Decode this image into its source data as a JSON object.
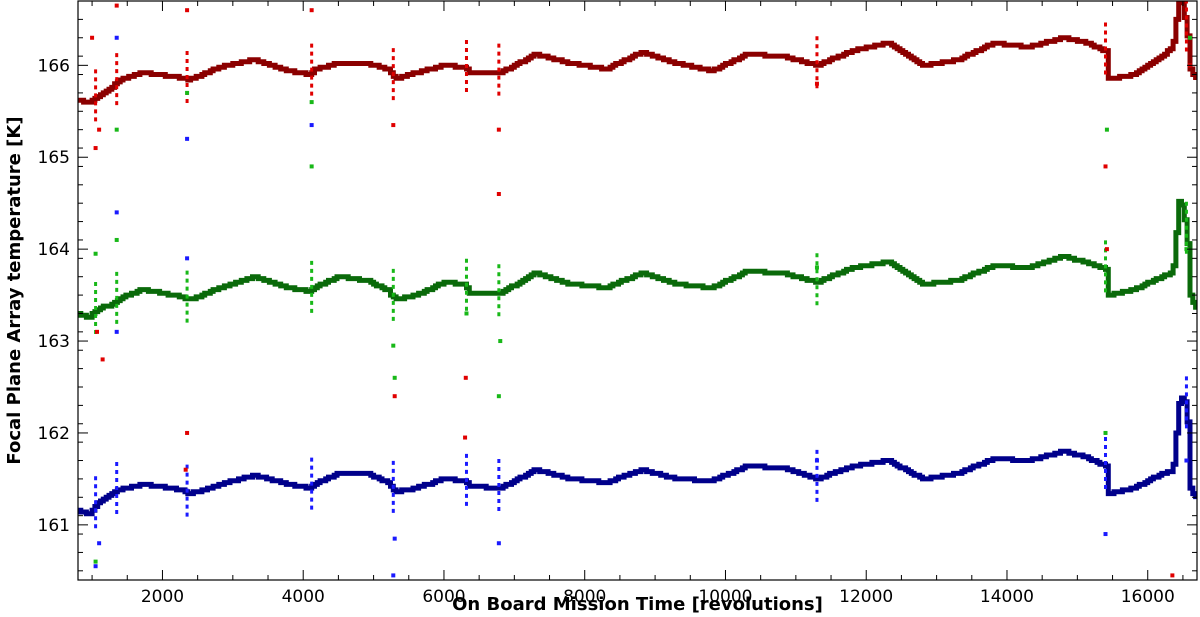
{
  "chart_data": {
    "type": "scatter",
    "title": "",
    "xlabel": "On Board Mission Time [revolutions]",
    "ylabel": "Focal Plane Array temperature [K]",
    "xlim": [
      800,
      16700
    ],
    "ylim": [
      160.4,
      166.7
    ],
    "xticks": [
      2000,
      4000,
      6000,
      8000,
      10000,
      12000,
      14000,
      16000
    ],
    "yticks": [
      161,
      162,
      163,
      164,
      165,
      166
    ],
    "grid": false,
    "series": [
      {
        "name": "red",
        "color": "#8b0000",
        "spike_color": "#e00000",
        "knots": [
          [
            800,
            165.62
          ],
          [
            950,
            165.6
          ],
          [
            1100,
            165.66
          ],
          [
            1300,
            165.78
          ],
          [
            1380,
            165.84
          ],
          [
            1700,
            165.92
          ],
          [
            2300,
            165.86
          ],
          [
            2350,
            165.84
          ],
          [
            2500,
            165.88
          ],
          [
            2800,
            165.98
          ],
          [
            3300,
            166.06
          ],
          [
            3800,
            165.94
          ],
          [
            4100,
            165.9
          ],
          [
            4150,
            165.95
          ],
          [
            4500,
            166.03
          ],
          [
            4900,
            166.02
          ],
          [
            5200,
            165.96
          ],
          [
            5300,
            165.85
          ],
          [
            5600,
            165.92
          ],
          [
            6000,
            166.0
          ],
          [
            6300,
            165.98
          ],
          [
            6350,
            165.93
          ],
          [
            6800,
            165.92
          ],
          [
            7300,
            166.12
          ],
          [
            7800,
            166.02
          ],
          [
            8300,
            165.96
          ],
          [
            8800,
            166.14
          ],
          [
            9300,
            166.02
          ],
          [
            9800,
            165.94
          ],
          [
            10300,
            166.12
          ],
          [
            10800,
            166.1
          ],
          [
            11300,
            166.0
          ],
          [
            11800,
            166.16
          ],
          [
            12300,
            166.24
          ],
          [
            12800,
            166.0
          ],
          [
            13300,
            166.06
          ],
          [
            13800,
            166.24
          ],
          [
            14300,
            166.2
          ],
          [
            14800,
            166.3
          ],
          [
            15100,
            166.25
          ],
          [
            15400,
            166.15
          ],
          [
            15420,
            165.85
          ],
          [
            15800,
            165.9
          ],
          [
            16200,
            166.1
          ],
          [
            16350,
            166.2
          ],
          [
            16450,
            166.8
          ],
          [
            16550,
            166.4
          ],
          [
            16600,
            165.95
          ],
          [
            16700,
            165.8
          ]
        ]
      },
      {
        "name": "green",
        "color": "#0a6a0a",
        "spike_color": "#18b818",
        "knots": [
          [
            800,
            163.3
          ],
          [
            950,
            163.26
          ],
          [
            1100,
            163.36
          ],
          [
            1300,
            163.4
          ],
          [
            1380,
            163.46
          ],
          [
            1700,
            163.56
          ],
          [
            2300,
            163.48
          ],
          [
            2350,
            163.45
          ],
          [
            2500,
            163.48
          ],
          [
            2800,
            163.58
          ],
          [
            3300,
            163.7
          ],
          [
            3800,
            163.58
          ],
          [
            4100,
            163.54
          ],
          [
            4150,
            163.58
          ],
          [
            4500,
            163.7
          ],
          [
            4900,
            163.66
          ],
          [
            5200,
            163.55
          ],
          [
            5300,
            163.45
          ],
          [
            5600,
            163.5
          ],
          [
            6000,
            163.64
          ],
          [
            6300,
            163.62
          ],
          [
            6350,
            163.52
          ],
          [
            6800,
            163.52
          ],
          [
            7300,
            163.74
          ],
          [
            7800,
            163.62
          ],
          [
            8300,
            163.58
          ],
          [
            8800,
            163.74
          ],
          [
            9300,
            163.62
          ],
          [
            9800,
            163.58
          ],
          [
            10300,
            163.76
          ],
          [
            10800,
            163.74
          ],
          [
            11300,
            163.64
          ],
          [
            11800,
            163.8
          ],
          [
            12300,
            163.86
          ],
          [
            12800,
            163.62
          ],
          [
            13300,
            163.66
          ],
          [
            13800,
            163.82
          ],
          [
            14300,
            163.8
          ],
          [
            14800,
            163.92
          ],
          [
            15100,
            163.86
          ],
          [
            15400,
            163.78
          ],
          [
            15420,
            163.5
          ],
          [
            15800,
            163.56
          ],
          [
            16200,
            163.7
          ],
          [
            16350,
            163.74
          ],
          [
            16450,
            164.6
          ],
          [
            16550,
            164.2
          ],
          [
            16600,
            163.5
          ],
          [
            16700,
            163.3
          ]
        ]
      },
      {
        "name": "blue",
        "color": "#00008b",
        "spike_color": "#1a1aff",
        "knots": [
          [
            800,
            161.15
          ],
          [
            950,
            161.12
          ],
          [
            1100,
            161.26
          ],
          [
            1300,
            161.35
          ],
          [
            1380,
            161.38
          ],
          [
            1700,
            161.44
          ],
          [
            2300,
            161.38
          ],
          [
            2350,
            161.34
          ],
          [
            2500,
            161.36
          ],
          [
            2800,
            161.44
          ],
          [
            3300,
            161.54
          ],
          [
            3800,
            161.44
          ],
          [
            4100,
            161.4
          ],
          [
            4150,
            161.44
          ],
          [
            4500,
            161.56
          ],
          [
            4900,
            161.56
          ],
          [
            5200,
            161.46
          ],
          [
            5300,
            161.36
          ],
          [
            5600,
            161.4
          ],
          [
            6000,
            161.5
          ],
          [
            6300,
            161.48
          ],
          [
            6350,
            161.42
          ],
          [
            6800,
            161.4
          ],
          [
            7300,
            161.6
          ],
          [
            7800,
            161.5
          ],
          [
            8300,
            161.46
          ],
          [
            8800,
            161.6
          ],
          [
            9300,
            161.5
          ],
          [
            9800,
            161.48
          ],
          [
            10300,
            161.64
          ],
          [
            10800,
            161.62
          ],
          [
            11300,
            161.5
          ],
          [
            11800,
            161.64
          ],
          [
            12300,
            161.7
          ],
          [
            12800,
            161.5
          ],
          [
            13300,
            161.56
          ],
          [
            13800,
            161.72
          ],
          [
            14300,
            161.7
          ],
          [
            14800,
            161.8
          ],
          [
            15100,
            161.74
          ],
          [
            15400,
            161.64
          ],
          [
            15420,
            161.34
          ],
          [
            15800,
            161.4
          ],
          [
            16200,
            161.56
          ],
          [
            16350,
            161.58
          ],
          [
            16450,
            162.4
          ],
          [
            16550,
            162.3
          ],
          [
            16600,
            161.4
          ],
          [
            16700,
            161.26
          ]
        ]
      }
    ],
    "spike_times": [
      1050,
      1350,
      2350,
      4120,
      5280,
      6320,
      6780,
      11300,
      15400,
      16550
    ],
    "outliers": [
      {
        "series": "red",
        "x": 1050,
        "y": 165.1
      },
      {
        "series": "red",
        "x": 1100,
        "y": 165.3
      },
      {
        "series": "red",
        "x": 1000,
        "y": 166.3
      },
      {
        "series": "red",
        "x": 1350,
        "y": 166.65
      },
      {
        "series": "red",
        "x": 2350,
        "y": 166.6
      },
      {
        "series": "red",
        "x": 2350,
        "y": 162.0
      },
      {
        "series": "red",
        "x": 2330,
        "y": 161.6
      },
      {
        "series": "red",
        "x": 4120,
        "y": 166.6
      },
      {
        "series": "red",
        "x": 5280,
        "y": 165.35
      },
      {
        "series": "red",
        "x": 5300,
        "y": 162.4
      },
      {
        "series": "red",
        "x": 6310,
        "y": 162.6
      },
      {
        "series": "red",
        "x": 6300,
        "y": 161.95
      },
      {
        "series": "red",
        "x": 6780,
        "y": 165.3
      },
      {
        "series": "red",
        "x": 6780,
        "y": 164.6
      },
      {
        "series": "red",
        "x": 11300,
        "y": 165.8
      },
      {
        "series": "red",
        "x": 15400,
        "y": 164.9
      },
      {
        "series": "red",
        "x": 15420,
        "y": 164.0
      },
      {
        "series": "red",
        "x": 16350,
        "y": 160.45
      },
      {
        "series": "red",
        "x": 16600,
        "y": 166.0
      },
      {
        "series": "red",
        "x": 1150,
        "y": 162.8
      },
      {
        "series": "red",
        "x": 1070,
        "y": 163.1
      },
      {
        "series": "green",
        "x": 1050,
        "y": 160.6
      },
      {
        "series": "green",
        "x": 1050,
        "y": 163.95
      },
      {
        "series": "green",
        "x": 1350,
        "y": 165.3
      },
      {
        "series": "green",
        "x": 1350,
        "y": 164.1
      },
      {
        "series": "green",
        "x": 2350,
        "y": 165.7
      },
      {
        "series": "green",
        "x": 4120,
        "y": 165.6
      },
      {
        "series": "green",
        "x": 4120,
        "y": 164.9
      },
      {
        "series": "green",
        "x": 5280,
        "y": 162.95
      },
      {
        "series": "green",
        "x": 5300,
        "y": 162.6
      },
      {
        "series": "green",
        "x": 6320,
        "y": 163.3
      },
      {
        "series": "green",
        "x": 6780,
        "y": 162.4
      },
      {
        "series": "green",
        "x": 6800,
        "y": 163.0
      },
      {
        "series": "green",
        "x": 11300,
        "y": 163.8
      },
      {
        "series": "green",
        "x": 15400,
        "y": 162.0
      },
      {
        "series": "green",
        "x": 15420,
        "y": 165.3
      },
      {
        "series": "green",
        "x": 16550,
        "y": 164.0
      },
      {
        "series": "green",
        "x": 16600,
        "y": 166.3
      },
      {
        "series": "blue",
        "x": 1050,
        "y": 160.55
      },
      {
        "series": "blue",
        "x": 1100,
        "y": 160.8
      },
      {
        "series": "blue",
        "x": 1350,
        "y": 166.3
      },
      {
        "series": "blue",
        "x": 1350,
        "y": 164.4
      },
      {
        "series": "blue",
        "x": 1350,
        "y": 163.1
      },
      {
        "series": "blue",
        "x": 2350,
        "y": 165.2
      },
      {
        "series": "blue",
        "x": 2350,
        "y": 163.9
      },
      {
        "series": "blue",
        "x": 4120,
        "y": 165.35
      },
      {
        "series": "blue",
        "x": 5280,
        "y": 160.45
      },
      {
        "series": "blue",
        "x": 5300,
        "y": 160.85
      },
      {
        "series": "blue",
        "x": 6780,
        "y": 160.8
      },
      {
        "series": "blue",
        "x": 11300,
        "y": 161.7
      },
      {
        "series": "blue",
        "x": 15400,
        "y": 160.9
      },
      {
        "series": "blue",
        "x": 16550,
        "y": 161.7
      }
    ]
  }
}
